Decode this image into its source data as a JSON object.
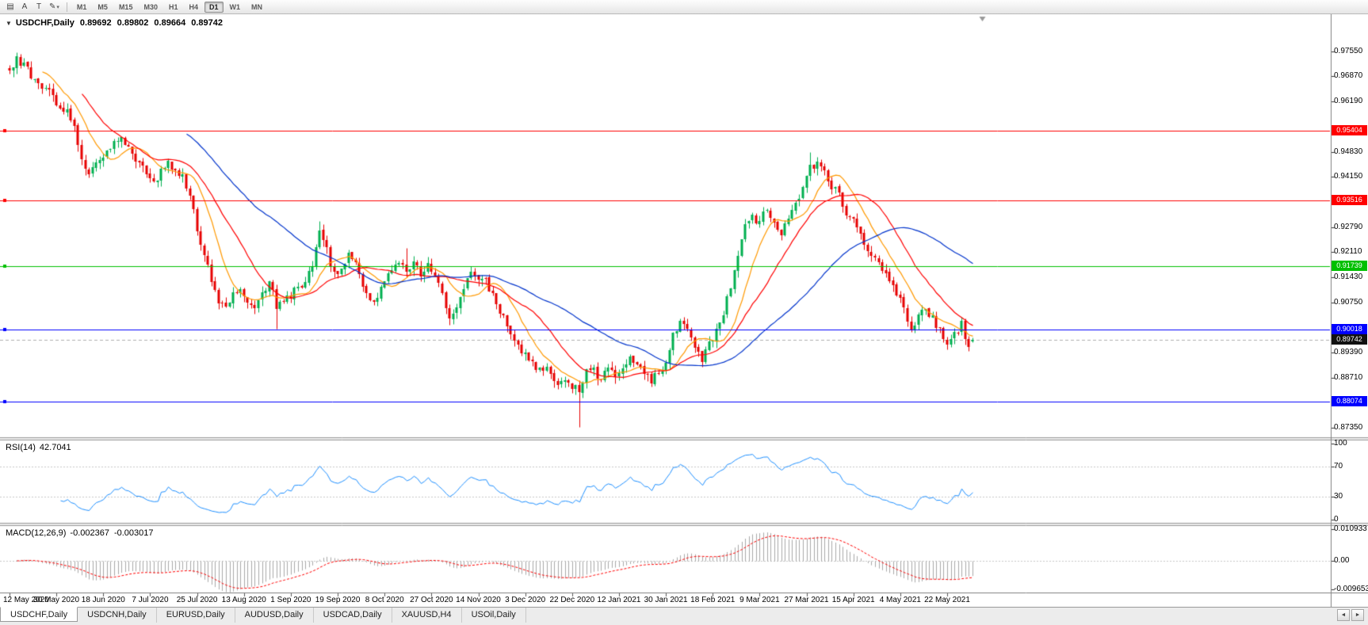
{
  "toolbar": {
    "tools": [
      {
        "name": "charts-list-icon",
        "glyph": "▤"
      },
      {
        "name": "text-label-tool",
        "glyph": "A"
      },
      {
        "name": "text-tool",
        "glyph": "T"
      },
      {
        "name": "draw-tool-icon",
        "glyph": "✎",
        "dropdown": true
      }
    ],
    "timeframes": [
      "M1",
      "M5",
      "M15",
      "M30",
      "H1",
      "H4",
      "D1",
      "W1",
      "MN"
    ],
    "active_timeframe": "D1"
  },
  "chart": {
    "expander_glyph": "▼",
    "symbol_title": "USDCHF,Daily",
    "ohlc": {
      "open": "0.89692",
      "high": "0.89802",
      "low": "0.89664",
      "close": "0.89742"
    },
    "current_price": {
      "value": 0.89742,
      "label": "0.89742",
      "tag_color": "#111111"
    }
  },
  "rsi": {
    "title": "RSI(14)",
    "value": "42.7041",
    "scale": [
      "100",
      "70",
      "30",
      "0"
    ]
  },
  "macd": {
    "title": "MACD(12,26,9)",
    "value_main": "-0.002367",
    "value_signal": "-0.003017",
    "scale": [
      "0.010933",
      "0.00",
      "-0.009653"
    ]
  },
  "tabs": [
    {
      "label": "USDCHF,Daily",
      "active": true
    },
    {
      "label": "USDCNH,Daily",
      "active": false
    },
    {
      "label": "EURUSD,Daily",
      "active": false
    },
    {
      "label": "AUDUSD,Daily",
      "active": false
    },
    {
      "label": "USDCAD,Daily",
      "active": false
    },
    {
      "label": "XAUUSD,H4",
      "active": false
    },
    {
      "label": "USOil,Daily",
      "active": false
    }
  ],
  "tab_arrows": {
    "left": "◄",
    "right": "►"
  },
  "chart_data": {
    "type": "candlestick",
    "symbol": "USDCHF",
    "period": "Daily",
    "bars": 268,
    "bars_per_label": 13,
    "colors": {
      "up": "#00b050",
      "down": "#e60000"
    },
    "x_labels": [
      "12 May 2020",
      "30 May 2020",
      "18 Jun 2020",
      "7 Jul 2020",
      "25 Jul 2020",
      "13 Aug 2020",
      "1 Sep 2020",
      "19 Sep 2020",
      "8 Oct 2020",
      "27 Oct 2020",
      "14 Nov 2020",
      "3 Dec 2020",
      "22 Dec 2020",
      "12 Jan 2021",
      "30 Jan 2021",
      "18 Feb 2021",
      "9 Mar 2021",
      "27 Mar 2021",
      "15 Apr 2021",
      "4 May 2021",
      "22 May 2021"
    ],
    "y_ticks": [
      "0.97550",
      "0.96870",
      "0.96190",
      "0.94830",
      "0.94150",
      "0.92790",
      "0.92110",
      "0.91430",
      "0.90750",
      "0.89390",
      "0.88710",
      "0.87350"
    ],
    "y_range": [
      0.871,
      0.9855
    ],
    "horizontal_lines": [
      {
        "price": 0.95404,
        "label": "0.95404",
        "color": "#ff0000"
      },
      {
        "price": 0.93516,
        "label": "0.93516",
        "color": "#ff0000"
      },
      {
        "price": 0.91739,
        "label": "0.91739",
        "color": "#00c000"
      },
      {
        "price": 0.90018,
        "label": "0.90018",
        "color": "#0000ff"
      },
      {
        "price": 0.88074,
        "label": "0.88074",
        "color": "#0000ff"
      }
    ],
    "last_bar": {
      "open": 0.89692,
      "high": 0.89802,
      "low": 0.89664,
      "close": 0.89742
    },
    "moving_averages": [
      {
        "period": 10,
        "color": "#ff9900"
      },
      {
        "period": 21,
        "color": "#ff0000"
      },
      {
        "period": 50,
        "color": "#0033cc"
      }
    ],
    "rsi": {
      "period": 14,
      "last": 42.7041,
      "levels": [
        100,
        70,
        30,
        0
      ],
      "color": "#1e90ff"
    },
    "macd": {
      "fast": 12,
      "slow": 26,
      "signal": 9,
      "last_main": -0.002367,
      "last_signal": -0.003017,
      "scale_max": 0.010933,
      "scale_min": -0.009653,
      "histogram_color": "#a9a9a9",
      "signal_color": "#ff0000"
    },
    "close_anchors": [
      [
        0,
        0.97
      ],
      [
        2,
        0.973
      ],
      [
        4,
        0.9722
      ],
      [
        6,
        0.9688
      ],
      [
        8,
        0.9668
      ],
      [
        10,
        0.966
      ],
      [
        12,
        0.9625
      ],
      [
        14,
        0.96
      ],
      [
        16,
        0.9606
      ],
      [
        18,
        0.955
      ],
      [
        20,
        0.9462
      ],
      [
        22,
        0.943
      ],
      [
        24,
        0.9448
      ],
      [
        26,
        0.9468
      ],
      [
        28,
        0.9498
      ],
      [
        30,
        0.952
      ],
      [
        32,
        0.9506
      ],
      [
        34,
        0.9474
      ],
      [
        36,
        0.945
      ],
      [
        38,
        0.9422
      ],
      [
        40,
        0.9398
      ],
      [
        42,
        0.9428
      ],
      [
        44,
        0.9452
      ],
      [
        46,
        0.9438
      ],
      [
        48,
        0.941
      ],
      [
        50,
        0.9362
      ],
      [
        52,
        0.928
      ],
      [
        54,
        0.9195
      ],
      [
        56,
        0.9142
      ],
      [
        58,
        0.9082
      ],
      [
        60,
        0.9058
      ],
      [
        62,
        0.9102
      ],
      [
        64,
        0.9122
      ],
      [
        66,
        0.9082
      ],
      [
        68,
        0.905
      ],
      [
        70,
        0.9096
      ],
      [
        72,
        0.9132
      ],
      [
        74,
        0.9066
      ],
      [
        76,
        0.9086
      ],
      [
        78,
        0.9092
      ],
      [
        80,
        0.9118
      ],
      [
        82,
        0.9135
      ],
      [
        84,
        0.9176
      ],
      [
        86,
        0.926
      ],
      [
        88,
        0.9212
      ],
      [
        90,
        0.915
      ],
      [
        92,
        0.9166
      ],
      [
        94,
        0.9212
      ],
      [
        96,
        0.9188
      ],
      [
        98,
        0.9118
      ],
      [
        100,
        0.9072
      ],
      [
        102,
        0.9096
      ],
      [
        104,
        0.9132
      ],
      [
        106,
        0.9156
      ],
      [
        108,
        0.9182
      ],
      [
        110,
        0.9162
      ],
      [
        112,
        0.9178
      ],
      [
        114,
        0.9156
      ],
      [
        116,
        0.917
      ],
      [
        118,
        0.9146
      ],
      [
        120,
        0.9096
      ],
      [
        122,
        0.904
      ],
      [
        124,
        0.9072
      ],
      [
        126,
        0.9122
      ],
      [
        128,
        0.915
      ],
      [
        130,
        0.9126
      ],
      [
        132,
        0.9132
      ],
      [
        134,
        0.9092
      ],
      [
        136,
        0.9052
      ],
      [
        138,
        0.902
      ],
      [
        140,
        0.8972
      ],
      [
        142,
        0.894
      ],
      [
        144,
        0.8922
      ],
      [
        146,
        0.8896
      ],
      [
        148,
        0.8902
      ],
      [
        150,
        0.8886
      ],
      [
        152,
        0.886
      ],
      [
        154,
        0.8872
      ],
      [
        156,
        0.885
      ],
      [
        158,
        0.8842
      ],
      [
        160,
        0.8886
      ],
      [
        162,
        0.8892
      ],
      [
        164,
        0.887
      ],
      [
        166,
        0.8892
      ],
      [
        168,
        0.8884
      ],
      [
        170,
        0.89
      ],
      [
        172,
        0.892
      ],
      [
        174,
        0.8906
      ],
      [
        176,
        0.8886
      ],
      [
        178,
        0.886
      ],
      [
        180,
        0.8892
      ],
      [
        182,
        0.8904
      ],
      [
        184,
        0.8986
      ],
      [
        186,
        0.9026
      ],
      [
        188,
        0.9002
      ],
      [
        190,
        0.895
      ],
      [
        192,
        0.8916
      ],
      [
        194,
        0.8962
      ],
      [
        196,
        0.9
      ],
      [
        198,
        0.9042
      ],
      [
        200,
        0.912
      ],
      [
        202,
        0.9212
      ],
      [
        204,
        0.928
      ],
      [
        206,
        0.9302
      ],
      [
        208,
        0.9296
      ],
      [
        210,
        0.9328
      ],
      [
        212,
        0.928
      ],
      [
        214,
        0.9256
      ],
      [
        216,
        0.9302
      ],
      [
        218,
        0.9342
      ],
      [
        220,
        0.9382
      ],
      [
        222,
        0.944
      ],
      [
        224,
        0.945
      ],
      [
        226,
        0.942
      ],
      [
        228,
        0.9392
      ],
      [
        230,
        0.9366
      ],
      [
        232,
        0.932
      ],
      [
        234,
        0.929
      ],
      [
        236,
        0.926
      ],
      [
        238,
        0.922
      ],
      [
        240,
        0.9196
      ],
      [
        242,
        0.916
      ],
      [
        244,
        0.914
      ],
      [
        246,
        0.9106
      ],
      [
        248,
        0.905
      ],
      [
        250,
        0.9
      ],
      [
        252,
        0.9042
      ],
      [
        254,
        0.9062
      ],
      [
        256,
        0.903
      ],
      [
        258,
        0.8996
      ],
      [
        260,
        0.897
      ],
      [
        262,
        0.8986
      ],
      [
        264,
        0.902
      ],
      [
        265,
        0.8984
      ],
      [
        266,
        0.8962
      ],
      [
        267,
        0.8974
      ]
    ],
    "spikes": [
      {
        "i": 74,
        "low": 0.9003
      },
      {
        "i": 86,
        "high": 0.9295
      },
      {
        "i": 110,
        "high": 0.9222
      },
      {
        "i": 158,
        "low": 0.8737
      },
      {
        "i": 222,
        "high": 0.9483
      }
    ]
  }
}
